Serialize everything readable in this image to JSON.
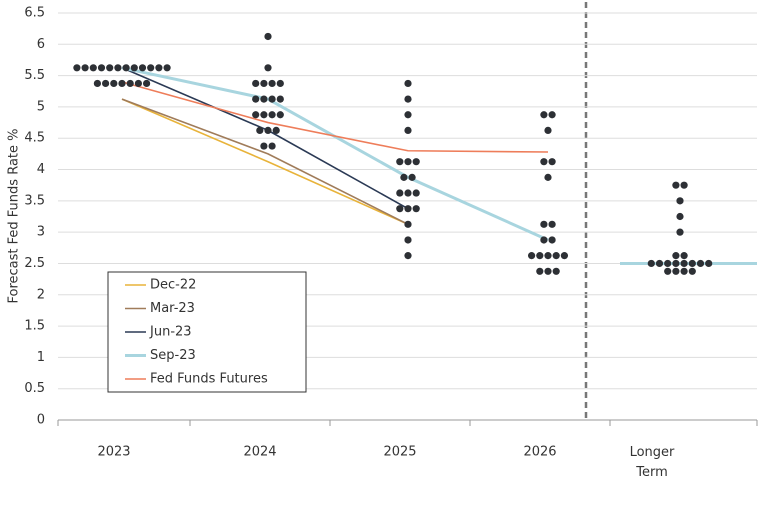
{
  "chart_data": {
    "type": "dotplot",
    "y_label": "Forecast Fed Funds Rate %",
    "categories": [
      "2023",
      "2024",
      "2025",
      "2026",
      "Longer Term"
    ],
    "ylim": [
      0,
      6.5
    ],
    "yticks": [
      0,
      0.5,
      1,
      1.5,
      2,
      2.5,
      3,
      3.5,
      4,
      4.5,
      5,
      5.5,
      6,
      6.5
    ],
    "grid": true,
    "dot_color": "#2d3035",
    "dots": [
      {
        "rates": [
          5.625,
          5.375
        ],
        "counts": [
          12,
          7
        ]
      },
      {
        "rates": [
          6.125,
          5.625,
          5.375,
          5.125,
          4.875,
          4.625,
          4.375
        ],
        "counts": [
          1,
          1,
          4,
          4,
          4,
          3,
          2
        ]
      },
      {
        "rates": [
          5.375,
          5.125,
          4.875,
          4.625,
          4.125,
          3.875,
          3.625,
          3.375,
          3.125,
          2.875,
          2.625
        ],
        "counts": [
          1,
          1,
          1,
          1,
          3,
          2,
          3,
          3,
          1,
          1,
          1
        ]
      },
      {
        "rates": [
          4.875,
          4.625,
          4.125,
          3.875,
          3.125,
          2.875,
          2.625,
          2.375
        ],
        "counts": [
          2,
          1,
          2,
          1,
          2,
          2,
          5,
          3
        ]
      },
      {
        "rates": [
          3.75,
          3.5,
          3.25,
          3.0,
          2.625,
          2.5,
          2.375
        ],
        "counts": [
          2,
          1,
          1,
          1,
          2,
          8,
          4
        ]
      }
    ],
    "series": [
      {
        "name": "Dec-22",
        "color": "#e8b33a",
        "values": [
          5.125,
          4.125,
          3.125,
          null,
          null
        ]
      },
      {
        "name": "Mar-23",
        "color": "#a07c5a",
        "values": [
          5.125,
          4.25,
          3.125,
          null,
          null
        ]
      },
      {
        "name": "Jun-23",
        "color": "#2b3a55",
        "values": [
          5.625,
          4.625,
          3.375,
          null,
          null
        ]
      },
      {
        "name": "Sep-23",
        "color": "#a8d5df",
        "values": [
          5.625,
          5.125,
          3.875,
          2.875,
          2.5
        ]
      },
      {
        "name": "Fed Funds Futures",
        "color": "#ee7d5a",
        "values": [
          5.4,
          4.75,
          4.3,
          4.28,
          null
        ]
      }
    ]
  }
}
